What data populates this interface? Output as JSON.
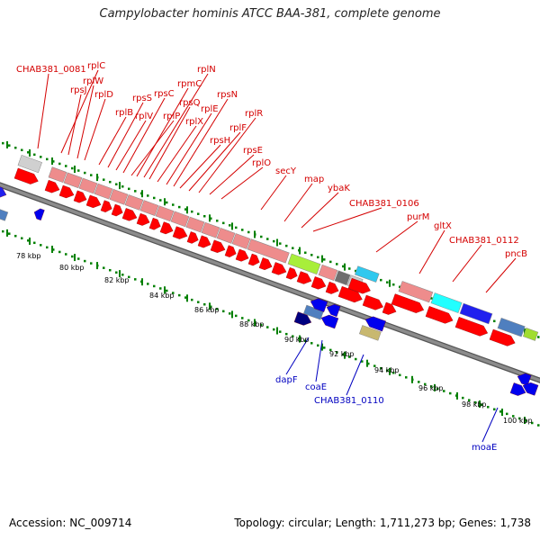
{
  "title": "Campylobacter hominis ATCC BAA-381, complete genome",
  "footer": {
    "accession": "Accession: NC_009714",
    "topology": "Topology: circular; Length: 1,711,273 bp; Genes: 1,738"
  },
  "colors": {
    "forward_label": "#d40000",
    "reverse_label": "#0000c0",
    "forward_cds": "#ff0000",
    "reverse_cds": "#0000ee",
    "backbone": "#8c8c8c",
    "tick": "#008000"
  },
  "kbp_labels": [
    "78 kbp",
    "80 kbp",
    "82 kbp",
    "84 kbp",
    "86 kbp",
    "88 kbp",
    "90 kbp",
    "92 kbp",
    "94 kbp",
    "96 kbp",
    "98 kbp",
    "100 kbp"
  ],
  "forward_labels": [
    "CHAB381_0081",
    "rplC",
    "rpsJ",
    "rplW",
    "rplD",
    "rplB",
    "rpsS",
    "rplV",
    "rpsC",
    "rplP",
    "rpmC",
    "rplN",
    "rpsQ",
    "rplX",
    "rplE",
    "rpsN",
    "rpsH",
    "rplF",
    "rplR",
    "rpsE",
    "rplO",
    "secY",
    "map",
    "ybaK",
    "CHAB381_0106",
    "purM",
    "gltX",
    "CHAB381_0112",
    "pncB"
  ],
  "reverse_labels": [
    "dapF",
    "coaE",
    "CHAB381_0110",
    "moaE"
  ]
}
